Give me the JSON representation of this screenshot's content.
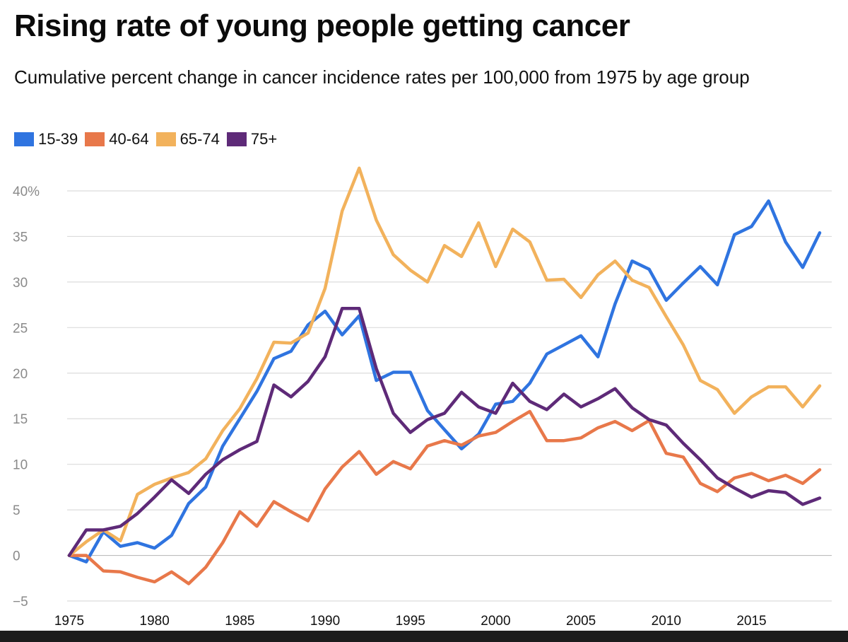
{
  "chart_data": {
    "type": "line",
    "title": "Rising rate of young people getting cancer",
    "subtitle": "Cumulative percent change in cancer incidence rates per 100,000 from 1975 by age group",
    "xlabel": "",
    "ylabel": "",
    "xlim": [
      1975,
      2019
    ],
    "ylim": [
      -5,
      40
    ],
    "y_ticks": [
      {
        "value": 40,
        "label": "40%"
      },
      {
        "value": 35,
        "label": "35"
      },
      {
        "value": 30,
        "label": "30"
      },
      {
        "value": 25,
        "label": "25"
      },
      {
        "value": 20,
        "label": "20"
      },
      {
        "value": 15,
        "label": "15"
      },
      {
        "value": 10,
        "label": "10"
      },
      {
        "value": 5,
        "label": "5"
      },
      {
        "value": 0,
        "label": "0"
      },
      {
        "value": -5,
        "label": "−5"
      }
    ],
    "x_ticks": [
      {
        "value": 1975,
        "label": "1975"
      },
      {
        "value": 1980,
        "label": "1980"
      },
      {
        "value": 1985,
        "label": "1985"
      },
      {
        "value": 1990,
        "label": "1990"
      },
      {
        "value": 1995,
        "label": "1995"
      },
      {
        "value": 2000,
        "label": "2000"
      },
      {
        "value": 2005,
        "label": "2005"
      },
      {
        "value": 2010,
        "label": "2010"
      },
      {
        "value": 2015,
        "label": "2015"
      }
    ],
    "grid": true,
    "legend_position": "top-left",
    "x": [
      1975,
      1976,
      1977,
      1978,
      1979,
      1980,
      1981,
      1982,
      1983,
      1984,
      1985,
      1986,
      1987,
      1988,
      1989,
      1990,
      1991,
      1992,
      1993,
      1994,
      1995,
      1996,
      1997,
      1998,
      1999,
      2000,
      2001,
      2002,
      2003,
      2004,
      2005,
      2006,
      2007,
      2008,
      2009,
      2010,
      2011,
      2012,
      2013,
      2014,
      2015,
      2016,
      2017,
      2018,
      2019
    ],
    "series": [
      {
        "name": "15-39",
        "color": "#2f74e0",
        "values": [
          0,
          -0.7,
          2.6,
          1.0,
          1.4,
          0.8,
          2.2,
          5.7,
          7.5,
          12.0,
          15.0,
          18.0,
          21.6,
          22.4,
          25.3,
          26.8,
          24.2,
          26.3,
          19.2,
          20.1,
          20.1,
          15.9,
          13.8,
          11.7,
          13.3,
          16.6,
          16.9,
          18.9,
          22.1,
          23.1,
          24.1,
          21.8,
          27.6,
          32.3,
          31.4,
          28.0,
          29.9,
          31.7,
          29.7,
          35.2,
          36.1,
          38.9,
          34.4,
          31.6,
          35.4
        ]
      },
      {
        "name": "40-64",
        "color": "#e8784a",
        "values": [
          0,
          0,
          -1.7,
          -1.8,
          -2.4,
          -2.9,
          -1.8,
          -3.1,
          -1.3,
          1.4,
          4.8,
          3.2,
          5.9,
          4.8,
          3.8,
          7.3,
          9.7,
          11.4,
          8.9,
          10.3,
          9.5,
          12.0,
          12.6,
          12.1,
          13.1,
          13.5,
          14.7,
          15.8,
          12.6,
          12.6,
          12.9,
          14.0,
          14.7,
          13.7,
          14.8,
          11.2,
          10.8,
          7.9,
          7.0,
          8.5,
          9.0,
          8.2,
          8.8,
          7.9,
          9.4
        ]
      },
      {
        "name": "65-74",
        "color": "#f2b25c",
        "values": [
          0,
          1.5,
          2.8,
          1.6,
          6.7,
          7.8,
          8.5,
          9.1,
          10.6,
          13.7,
          16.1,
          19.4,
          23.4,
          23.3,
          24.4,
          29.3,
          37.8,
          42.5,
          36.8,
          33.0,
          31.3,
          30.0,
          34.0,
          32.8,
          36.5,
          31.7,
          35.8,
          34.4,
          30.2,
          30.3,
          28.3,
          30.8,
          32.3,
          30.2,
          29.4,
          26.2,
          23.1,
          19.2,
          18.2,
          15.6,
          17.4,
          18.5,
          18.5,
          16.3,
          18.6
        ]
      },
      {
        "name": "75+",
        "color": "#5e2a78",
        "values": [
          0,
          2.8,
          2.8,
          3.2,
          4.6,
          6.4,
          8.3,
          6.8,
          8.9,
          10.5,
          11.6,
          12.5,
          18.7,
          17.4,
          19.1,
          21.8,
          27.1,
          27.1,
          20.5,
          15.6,
          13.5,
          14.9,
          15.6,
          17.9,
          16.3,
          15.6,
          18.9,
          16.9,
          16.0,
          17.7,
          16.3,
          17.2,
          18.3,
          16.2,
          14.9,
          14.3,
          12.3,
          10.5,
          8.5,
          7.4,
          6.4,
          7.1,
          6.9,
          5.6,
          6.3
        ]
      }
    ]
  }
}
